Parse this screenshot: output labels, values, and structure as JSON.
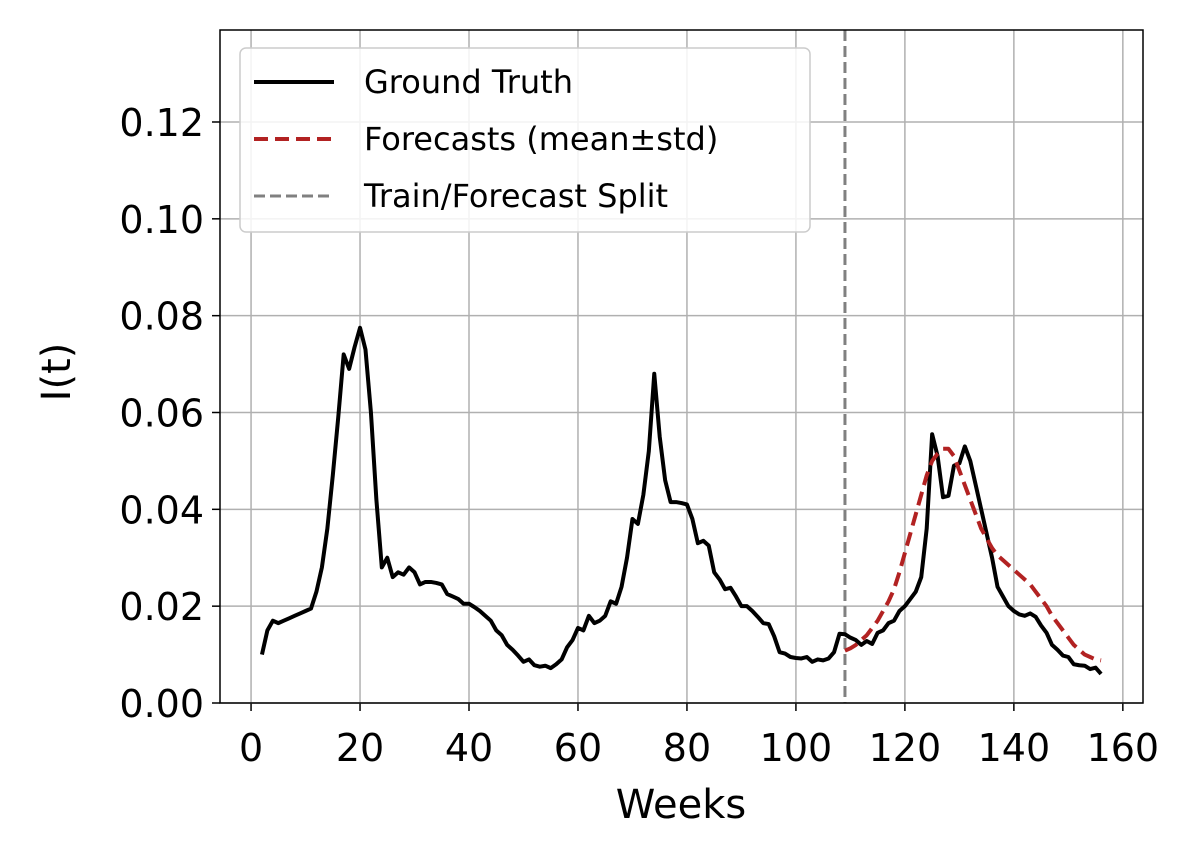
{
  "chart_data": {
    "type": "line",
    "xlabel": "Weeks",
    "ylabel": "I(t)",
    "xlim": [
      -5.7,
      163.7
    ],
    "ylim": [
      0,
      0.139
    ],
    "xticks": [
      0,
      20,
      40,
      60,
      80,
      100,
      120,
      140,
      160
    ],
    "yticks": [
      {
        "value": 0,
        "label": "0.00"
      },
      {
        "value": 0.02,
        "label": "0.02"
      },
      {
        "value": 0.04,
        "label": "0.04"
      },
      {
        "value": 0.06,
        "label": "0.06"
      },
      {
        "value": 0.08,
        "label": "0.08"
      },
      {
        "value": 0.1,
        "label": "0.10"
      },
      {
        "value": 0.12,
        "label": "0.12"
      }
    ],
    "grid": true,
    "legend": "upper left",
    "series": [
      {
        "name": "Ground Truth",
        "color": "#000000",
        "dash": false,
        "x": [
          2,
          3,
          4,
          5,
          6,
          7,
          8,
          9,
          10,
          11,
          12,
          13,
          14,
          15,
          16,
          17,
          18,
          19,
          20,
          21,
          22,
          23,
          24,
          25,
          26,
          27,
          28,
          29,
          30,
          31,
          32,
          33,
          34,
          35,
          36,
          37,
          38,
          39,
          40,
          41,
          42,
          43,
          44,
          45,
          46,
          47,
          48,
          49,
          50,
          51,
          52,
          53,
          54,
          55,
          56,
          57,
          58,
          59,
          60,
          61,
          62,
          63,
          64,
          65,
          66,
          67,
          68,
          69,
          70,
          71,
          72,
          73,
          74,
          75,
          76,
          77,
          78,
          79,
          80,
          81,
          82,
          83,
          84,
          85,
          86,
          87,
          88,
          89,
          90,
          91,
          92,
          93,
          94,
          95,
          96,
          97,
          98,
          99,
          100,
          101,
          102,
          103,
          104,
          105,
          106,
          107,
          108,
          109,
          110,
          111,
          112,
          113,
          114,
          115,
          116,
          117,
          118,
          119,
          120,
          121,
          122,
          123,
          124,
          125,
          126,
          127,
          128,
          129,
          130,
          131,
          132,
          133,
          134,
          135,
          136,
          137,
          138,
          139,
          140,
          141,
          142,
          143,
          144,
          145,
          146,
          147,
          148,
          149,
          150,
          151,
          152,
          153,
          154,
          155,
          156
        ],
        "values": [
          0.01,
          0.015,
          0.017,
          0.0165,
          0.017,
          0.0175,
          0.018,
          0.0185,
          0.019,
          0.0195,
          0.023,
          0.028,
          0.036,
          0.047,
          0.059,
          0.072,
          0.069,
          0.0735,
          0.0775,
          0.073,
          0.06,
          0.042,
          0.028,
          0.03,
          0.026,
          0.027,
          0.0265,
          0.028,
          0.027,
          0.0245,
          0.025,
          0.025,
          0.0248,
          0.0245,
          0.0225,
          0.022,
          0.0215,
          0.0205,
          0.0205,
          0.0198,
          0.019,
          0.018,
          0.017,
          0.015,
          0.014,
          0.012,
          0.011,
          0.0098,
          0.0085,
          0.009,
          0.0078,
          0.0075,
          0.0077,
          0.0072,
          0.008,
          0.009,
          0.0115,
          0.013,
          0.0155,
          0.015,
          0.018,
          0.0165,
          0.017,
          0.018,
          0.021,
          0.0205,
          0.024,
          0.03,
          0.038,
          0.037,
          0.043,
          0.052,
          0.068,
          0.055,
          0.046,
          0.0415,
          0.0415,
          0.0413,
          0.041,
          0.038,
          0.033,
          0.0335,
          0.0325,
          0.027,
          0.0255,
          0.0235,
          0.0238,
          0.022,
          0.02,
          0.02,
          0.019,
          0.0178,
          0.0165,
          0.0163,
          0.0138,
          0.0105,
          0.0102,
          0.0095,
          0.0093,
          0.0092,
          0.0095,
          0.0085,
          0.009,
          0.0088,
          0.0092,
          0.0105,
          0.0143,
          0.0142,
          0.0135,
          0.013,
          0.012,
          0.0128,
          0.0122,
          0.0145,
          0.015,
          0.0165,
          0.017,
          0.019,
          0.02,
          0.0215,
          0.023,
          0.026,
          0.036,
          0.0555,
          0.051,
          0.0425,
          0.0428,
          0.049,
          0.0495,
          0.053,
          0.05,
          0.045,
          0.04,
          0.035,
          0.03,
          0.024,
          0.022,
          0.02,
          0.019,
          0.0183,
          0.018,
          0.0185,
          0.0178,
          0.016,
          0.0145,
          0.012,
          0.011,
          0.0098,
          0.0095,
          0.008,
          0.0078,
          0.0077,
          0.007,
          0.0073,
          0.006
        ]
      },
      {
        "name": "Forecasts (mean±std)",
        "color": "#b22222",
        "dash": true,
        "x": [
          109,
          110,
          111,
          112,
          113,
          114,
          115,
          116,
          117,
          118,
          119,
          120,
          121,
          122,
          123,
          124,
          125,
          126,
          127,
          128,
          129,
          130,
          131,
          132,
          133,
          134,
          135,
          136,
          137,
          138,
          139,
          140,
          141,
          142,
          143,
          144,
          145,
          146,
          147,
          148,
          149,
          150,
          151,
          152,
          153,
          154,
          155,
          156
        ],
        "values": [
          0.0108,
          0.0113,
          0.012,
          0.013,
          0.014,
          0.0155,
          0.017,
          0.019,
          0.021,
          0.0235,
          0.027,
          0.031,
          0.035,
          0.039,
          0.043,
          0.047,
          0.05,
          0.0515,
          0.0525,
          0.0525,
          0.051,
          0.048,
          0.045,
          0.042,
          0.039,
          0.036,
          0.034,
          0.032,
          0.0305,
          0.0295,
          0.0285,
          0.0275,
          0.0265,
          0.0255,
          0.0245,
          0.023,
          0.0215,
          0.02,
          0.018,
          0.0165,
          0.015,
          0.0135,
          0.012,
          0.011,
          0.01,
          0.0095,
          0.009,
          0.0088
        ]
      }
    ],
    "vlines": [
      {
        "name": "Train/Forecast Split",
        "x": 109,
        "color": "#808080"
      }
    ]
  }
}
